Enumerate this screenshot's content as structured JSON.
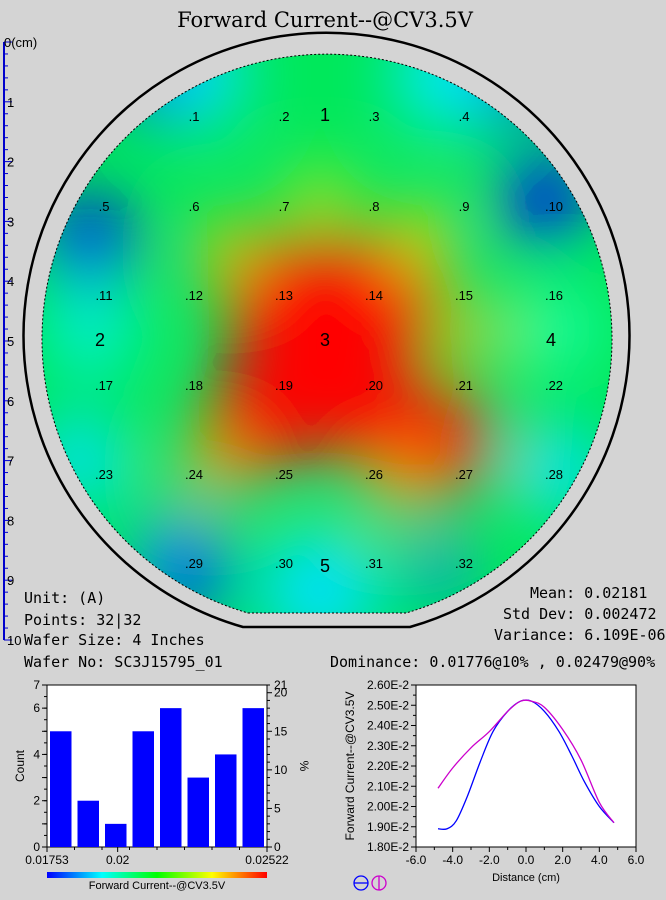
{
  "title": "Forward Current--@CV3.5V",
  "ruler": {
    "unit_label": "0(cm)",
    "ticks": [
      "1",
      "2",
      "3",
      "4",
      "5",
      "6",
      "7",
      "8",
      "9",
      "10"
    ]
  },
  "wafer_map": {
    "point_labels": [
      ".1",
      ".2",
      ".3",
      ".4",
      ".5",
      ".6",
      ".7",
      ".8",
      ".9",
      ".10",
      ".11",
      ".12",
      ".13",
      ".14",
      ".15",
      ".16",
      ".17",
      ".18",
      ".19",
      ".20",
      ".21",
      ".22",
      ".23",
      ".24",
      ".25",
      ".26",
      ".27",
      ".28",
      ".29",
      ".30",
      ".31",
      ".32"
    ],
    "region_labels": [
      "1",
      "2",
      "3",
      "4",
      "5"
    ],
    "colors": {
      "low": "#0000ff",
      "mid": "#00ff00",
      "high": "#ff0000"
    }
  },
  "info": {
    "unit": "Unit: (A)",
    "points": "Points: 32|32",
    "wafer_size": "Wafer Size: 4 Inches",
    "wafer_no": "Wafer No: SC3J15795_01",
    "mean": "Mean: 0.02181",
    "std_dev": "Std Dev: 0.002472",
    "variance": "Variance: 6.109E-06",
    "dominance": "Dominance: 0.01776@10% , 0.02479@90%"
  },
  "chart_data": [
    {
      "type": "bar",
      "title": "",
      "xlabel": "Forward Current--@CV3.5V",
      "ylabel": "Count",
      "y2label": "%",
      "x_tick_labels": [
        "0.01753",
        "0.02",
        "0.02522"
      ],
      "ylim": [
        0,
        7
      ],
      "y_ticks": [
        "0",
        "2",
        "4",
        "6",
        "7"
      ],
      "y2lim": [
        0,
        21
      ],
      "y2_ticks": [
        "0",
        "5",
        "10",
        "15",
        "20",
        "21"
      ],
      "bar_color": "#0000ff",
      "values": [
        5,
        2,
        1,
        5,
        6,
        3,
        4,
        6
      ]
    },
    {
      "type": "line",
      "title": "",
      "xlabel": "Distance (cm)",
      "ylabel": "Forward Current--@CV3.5V",
      "xlim": [
        -6.0,
        6.0
      ],
      "x_ticks": [
        "-6.0",
        "-4.0",
        "-2.0",
        "0.0",
        "2.0",
        "4.0",
        "6.0"
      ],
      "ylim": [
        0.018,
        0.026
      ],
      "y_ticks": [
        "1.80E-2",
        "1.90E-2",
        "2.00E-2",
        "2.10E-2",
        "2.20E-2",
        "2.30E-2",
        "2.40E-2",
        "2.50E-2",
        "2.60E-2"
      ],
      "series": [
        {
          "color": "#0000ff",
          "x": [
            -4.8,
            -4.3,
            -3.8,
            -3.2,
            -2.5,
            -1.8,
            -1.0,
            -0.3,
            0.3,
            1.0,
            1.8,
            2.5,
            3.2,
            4.0,
            4.8
          ],
          "y": [
            0.0189,
            0.0189,
            0.0193,
            0.0205,
            0.0222,
            0.0237,
            0.0247,
            0.0252,
            0.0252,
            0.0247,
            0.0237,
            0.0225,
            0.0212,
            0.02,
            0.0192
          ]
        },
        {
          "color": "#cc00cc",
          "x": [
            -4.8,
            -4.0,
            -3.0,
            -2.0,
            -1.0,
            -0.3,
            0.3,
            1.0,
            2.0,
            3.0,
            4.0,
            4.8
          ],
          "y": [
            0.0209,
            0.0219,
            0.0229,
            0.0237,
            0.0247,
            0.0252,
            0.0252,
            0.0249,
            0.0238,
            0.0223,
            0.0202,
            0.0192
          ]
        }
      ]
    }
  ]
}
